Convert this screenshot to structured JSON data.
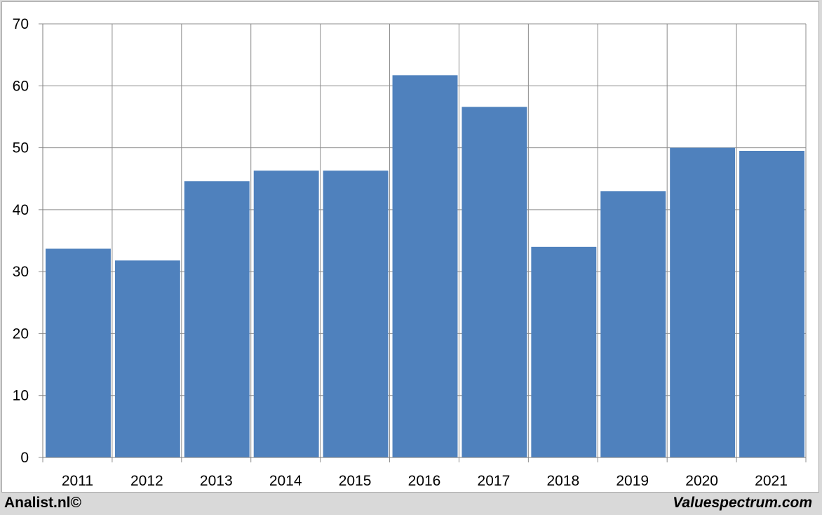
{
  "chart_data": {
    "type": "bar",
    "categories": [
      "2011",
      "2012",
      "2013",
      "2014",
      "2015",
      "2016",
      "2017",
      "2018",
      "2019",
      "2020",
      "2021"
    ],
    "values": [
      33.7,
      31.8,
      44.6,
      46.3,
      46.3,
      61.7,
      56.6,
      34.0,
      43.0,
      50.0,
      49.5
    ],
    "ylim": [
      0,
      70
    ],
    "yticks": [
      0,
      10,
      20,
      30,
      40,
      50,
      60,
      70
    ],
    "grid": true,
    "bar_color": "#4f81bd",
    "grid_color": "#8c8c8c"
  },
  "footer": {
    "left": "Analist.nl©",
    "right": "Valuespectrum.com"
  }
}
